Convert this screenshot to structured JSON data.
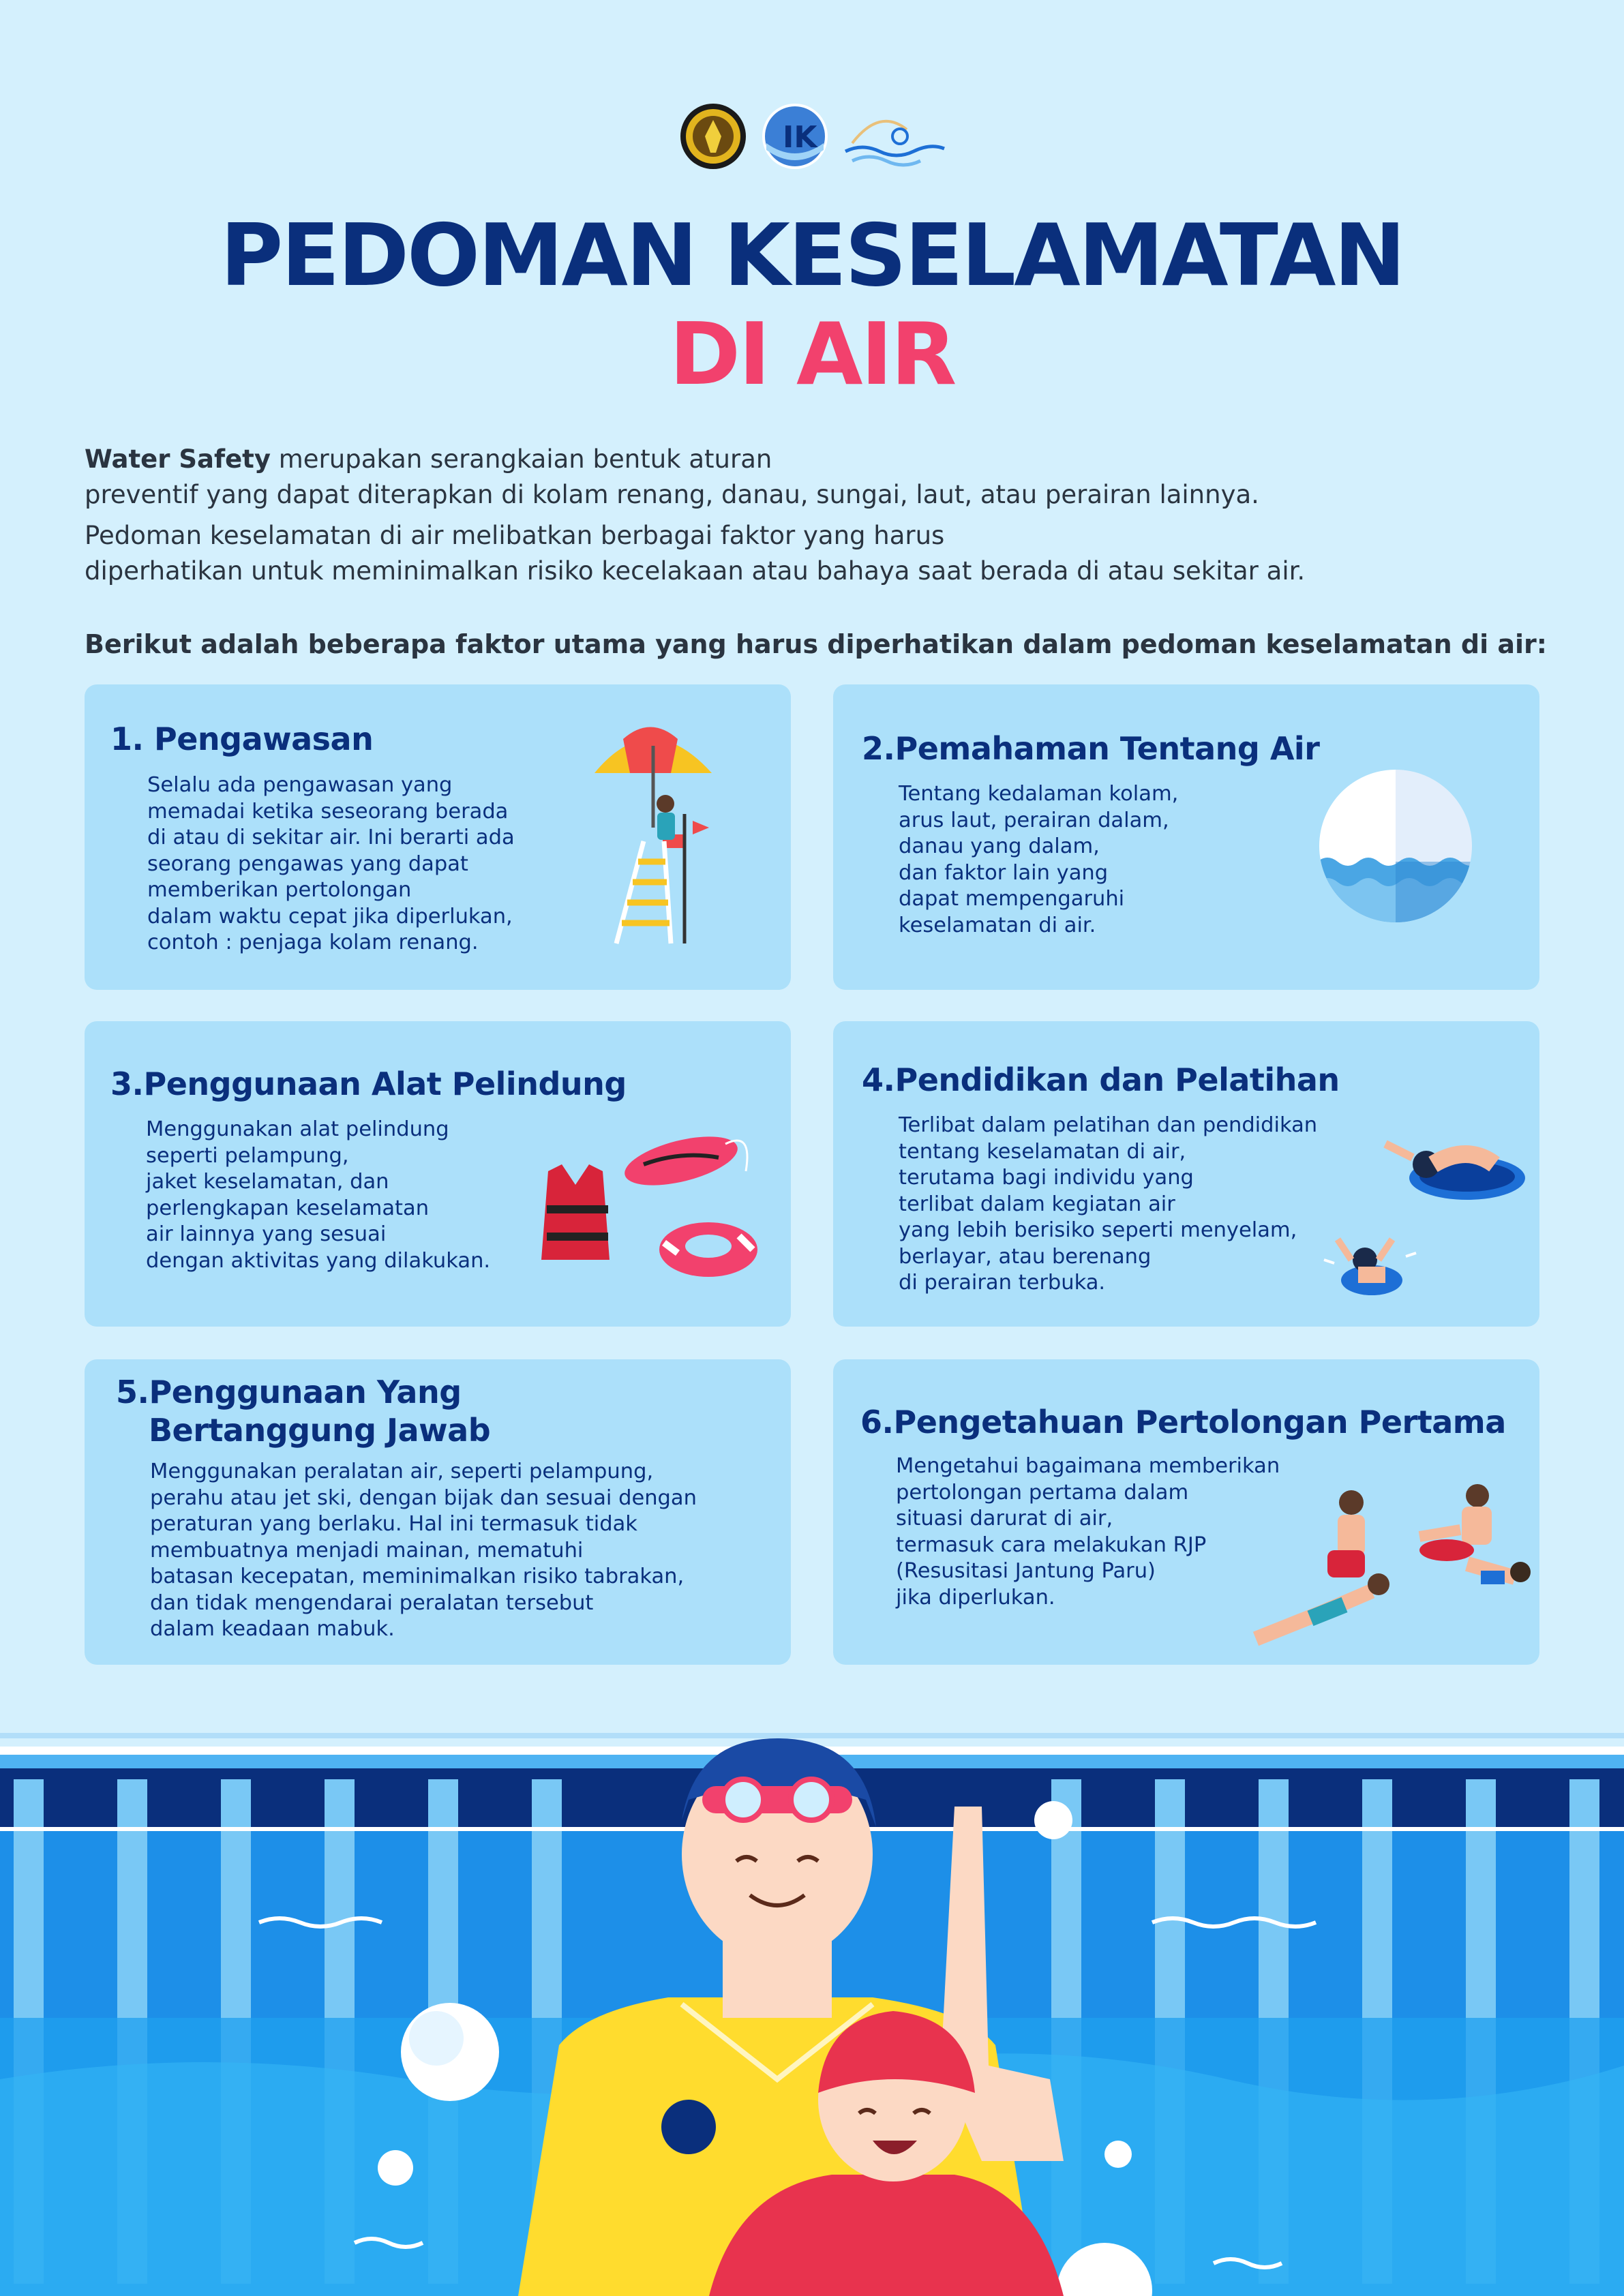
{
  "header": {
    "logos": [
      "university-seal-logo",
      "ik-globe-logo",
      "swimmer-waves-logo"
    ],
    "title_line1": "PEDOMAN KESELAMATAN",
    "title_line2": "DI AIR"
  },
  "intro": {
    "p1_bold": "Water Safety",
    "p1_rest": " merupakan serangkaian bentuk aturan",
    "p1_line2": "preventif yang dapat diterapkan di kolam renang, danau, sungai, laut, atau perairan lainnya.",
    "p2_line1": "Pedoman keselamatan di air melibatkan berbagai faktor yang harus",
    "p2_line2": "diperhatikan untuk meminimalkan risiko kecelakaan atau bahaya saat berada di atau sekitar air.",
    "lead": "Berikut adalah beberapa faktor utama yang harus diperhatikan dalam pedoman keselamatan di air:"
  },
  "cards": [
    {
      "number": "1.",
      "title": "Pengawasan",
      "body": "Selalu ada pengawasan yang\nmemadai ketika seseorang berada\ndi atau di sekitar air. Ini berarti ada\nseorang pengawas yang dapat\nmemberikan pertolongan\ndalam waktu cepat jika diperlukan,\ncontoh : penjaga kolam renang.",
      "icon": "lifeguard-chair-umbrella-icon"
    },
    {
      "number": "2.",
      "title": "Pemahaman Tentang Air",
      "body": "Tentang kedalaman kolam,\narus laut, perairan dalam,\ndanau yang dalam,\ndan faktor lain yang\ndapat mempengaruhi\nkeselamatan di air.",
      "icon": "water-depth-circle-icon"
    },
    {
      "number": "3.",
      "title": "Penggunaan Alat Pelindung",
      "body": "Menggunakan alat pelindung\nseperti pelampung,\njaket keselamatan, dan\nperlengkapan keselamatan\nair lainnya yang sesuai\ndengan aktivitas yang dilakukan.",
      "icon": "life-jacket-buoy-icon"
    },
    {
      "number": "4.",
      "title": "Pendidikan dan Pelatihan",
      "body": "Terlibat dalam pelatihan dan pendidikan\ntentang keselamatan di air,\nterutama bagi individu yang\nterlibat dalam kegiatan air\nyang lebih berisiko seperti menyelam,\nberlayar, atau berenang\ndi perairan terbuka.",
      "icon": "swimmers-training-icon"
    },
    {
      "number": "5.",
      "title_line1": "Penggunaan Yang",
      "title_line2": "Bertanggung Jawab",
      "body": "Menggunakan peralatan air, seperti pelampung,\nperahu atau jet ski, dengan bijak dan sesuai dengan\nperaturan yang berlaku. Hal ini termasuk tidak\nmembuatnya menjadi mainan, mematuhi\nbatasan kecepatan, meminimalkan risiko tabrakan,\ndan tidak mengendarai peralatan tersebut\ndalam keadaan mabuk.",
      "icon": ""
    },
    {
      "number": "6.",
      "title": "Pengetahuan Pertolongan Pertama",
      "body": "Mengetahui bagaimana memberikan\npertolongan pertama dalam\nsituasi darurat di air,\ntermasuk cara melakukan RJP\n(Resusitasi Jantung Paru)\njika diperlukan.",
      "icon": "first-aid-cpr-icon"
    }
  ],
  "colors": {
    "background": "#d4f0fd",
    "card": "#ace0fa",
    "navy": "#0a2f7c",
    "pink": "#f2416d",
    "pool_blue": "#1d8fe8"
  }
}
